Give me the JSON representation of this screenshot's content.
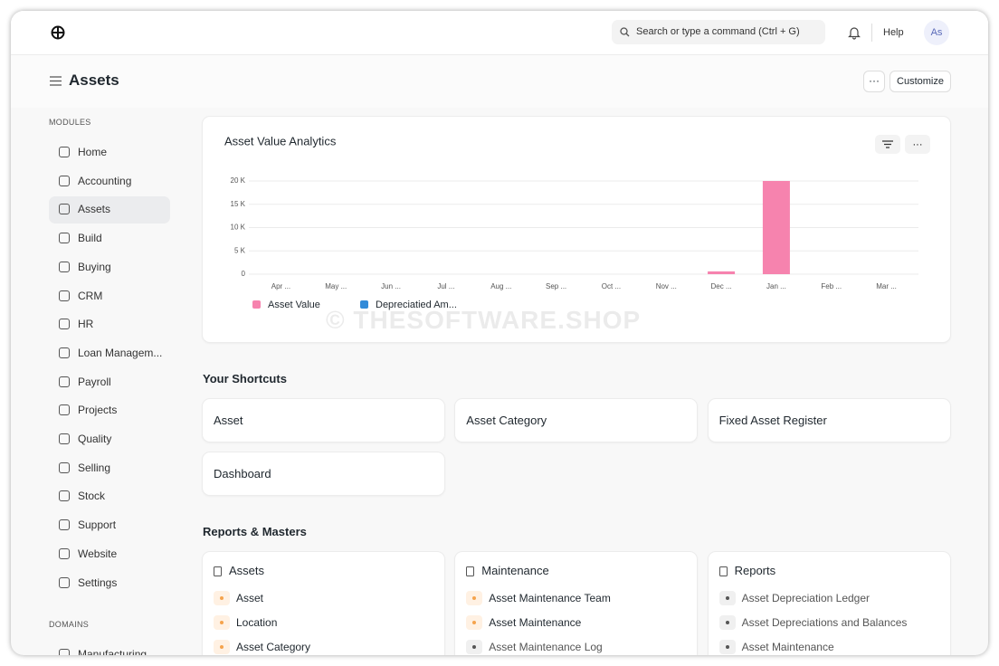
{
  "navbar": {
    "search": "Search or type a command (Ctrl + G)",
    "help": "Help",
    "avatar": "As"
  },
  "page": {
    "title": "Assets",
    "more": "···",
    "customize": "Customize"
  },
  "sidebar": {
    "modules_heading": "MODULES",
    "items": [
      "Home",
      "Accounting",
      "Assets",
      "Build",
      "Buying",
      "CRM",
      "HR",
      "Loan Managem...",
      "Payroll",
      "Projects",
      "Quality",
      "Selling",
      "Stock",
      "Support",
      "Website",
      "Settings"
    ],
    "domains_heading": "DOMAINS",
    "domains": [
      "Manufacturing"
    ]
  },
  "chart_card": {
    "menu": "···"
  },
  "chart_data": {
    "type": "bar",
    "title": "Asset Value Analytics",
    "categories": [
      "Apr ...",
      "May ...",
      "Jun ...",
      "Jul ...",
      "Aug ...",
      "Sep ...",
      "Oct ...",
      "Nov ...",
      "Dec ...",
      "Jan ...",
      "Feb ...",
      "Mar ..."
    ],
    "series": [
      {
        "name": "Asset Value",
        "color": "#f683ae",
        "values": [
          0,
          0,
          0,
          0,
          0,
          0,
          0,
          0,
          600,
          20000,
          0,
          0
        ]
      },
      {
        "name": "Depreciatied Am...",
        "color": "#318ad8",
        "values": [
          0,
          0,
          0,
          0,
          0,
          0,
          0,
          0,
          0,
          0,
          0,
          0
        ]
      }
    ],
    "ylim": [
      0,
      20000
    ],
    "yticks": [
      0,
      {
        "value": 5000,
        "label": "5 K"
      },
      {
        "value": 10000,
        "label": "10 K"
      },
      {
        "value": 15000,
        "label": "15 K"
      },
      {
        "value": 20000,
        "label": "20 K"
      }
    ],
    "grid": true,
    "legend": "bottom-left"
  },
  "watermark": "© THESOFTWARE.SHOP",
  "shortcuts": {
    "heading": "Your Shortcuts",
    "items": [
      "Asset",
      "Asset Category",
      "Fixed Asset Register",
      "Dashboard"
    ]
  },
  "reports": {
    "heading": "Reports & Masters",
    "cards": [
      {
        "title": "Assets",
        "links": [
          {
            "label": "Asset",
            "color": "orange"
          },
          {
            "label": "Location",
            "color": "orange"
          },
          {
            "label": "Asset Category",
            "color": "orange"
          }
        ]
      },
      {
        "title": "Maintenance",
        "links": [
          {
            "label": "Asset Maintenance Team",
            "color": "orange"
          },
          {
            "label": "Asset Maintenance",
            "color": "orange"
          },
          {
            "label": "Asset Maintenance Log",
            "color": "gray"
          }
        ]
      },
      {
        "title": "Reports",
        "links": [
          {
            "label": "Asset Depreciation Ledger",
            "color": "gray"
          },
          {
            "label": "Asset Depreciations and Balances",
            "color": "gray"
          },
          {
            "label": "Asset Maintenance",
            "color": "gray"
          }
        ]
      }
    ]
  }
}
